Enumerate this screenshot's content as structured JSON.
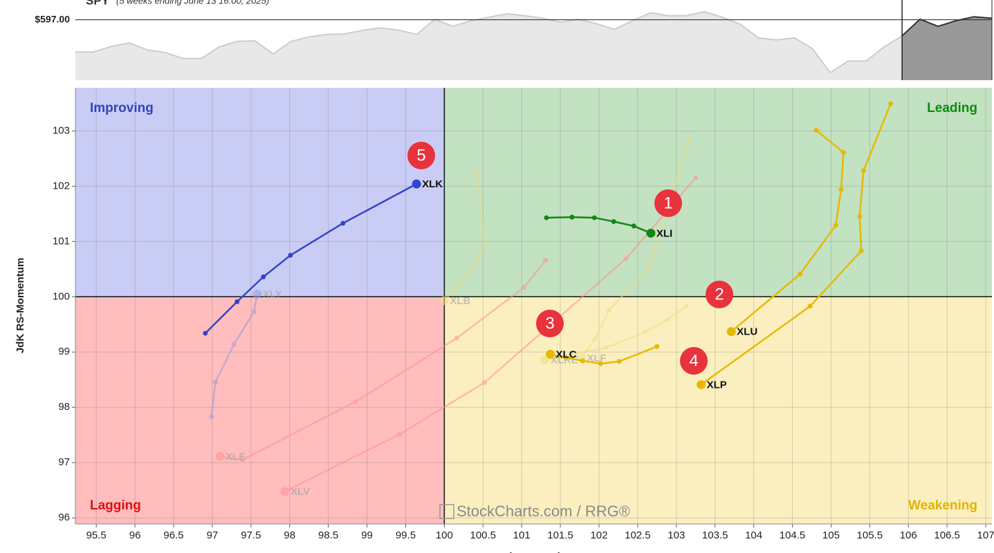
{
  "chart_data": {
    "type": "rrg",
    "benchmark": {
      "title": "SPY",
      "subtitle": "(5 weeks ending June 13 16:00, 2025)",
      "reference": {
        "value": 597,
        "label": "$597.00"
      },
      "ylim": [
        585,
        599
      ],
      "highlight_from": 46,
      "values": [
        590.6,
        590.6,
        591.7,
        592.4,
        591.0,
        590.5,
        589.3,
        589.3,
        591.6,
        592.7,
        592.8,
        590.2,
        592.7,
        593.6,
        594.1,
        594.2,
        594.9,
        595.4,
        594.9,
        594.1,
        597.1,
        595.7,
        596.8,
        597.5,
        598.2,
        597.8,
        597.3,
        596.5,
        597.1,
        596.2,
        595.1,
        596.8,
        598.4,
        597.8,
        597.8,
        598.6,
        597.5,
        596.1,
        593.4,
        593.0,
        593.4,
        591.3,
        586.5,
        588.8,
        588.8,
        591.6,
        593.8,
        597.1,
        595.7,
        596.8,
        597.6,
        597.3
      ]
    },
    "x_label": "JdK RS-Ratio",
    "y_label": "JdK RS-Momentum",
    "xlim": [
      95.23,
      107.08
    ],
    "ylim": [
      95.89,
      103.78
    ],
    "xticks": [
      95.5,
      96,
      96.5,
      97,
      97.5,
      98,
      98.5,
      99,
      99.5,
      100,
      100.5,
      101,
      101.5,
      102,
      102.5,
      103,
      103.5,
      104,
      104.5,
      105,
      105.5,
      106,
      106.5,
      107
    ],
    "yticks": [
      96,
      97,
      98,
      99,
      100,
      101,
      102,
      103
    ],
    "center": [
      100,
      100
    ],
    "grid": true,
    "quadrants": [
      {
        "name": "Improving",
        "color": "#c9cdf5",
        "text_color": "#3344bb"
      },
      {
        "name": "Leading",
        "color": "#c2e2c2",
        "text_color": "#118811"
      },
      {
        "name": "Lagging",
        "color": "#ffbdbd",
        "text_color": "#dd1111"
      },
      {
        "name": "Weakening",
        "color": "#fbefc0",
        "text_color": "#e2b400"
      }
    ],
    "watermark": "StockCharts.com / RRG®",
    "annotations": [
      "1",
      "2",
      "3",
      "4",
      "5"
    ],
    "series": [
      {
        "name": "XLY",
        "color": "#9999dd",
        "opacity": 0.55,
        "x": [
          96.99,
          97.04,
          97.28,
          97.54,
          97.58
        ],
        "y": [
          97.83,
          98.45,
          99.14,
          99.73,
          100.05
        ]
      },
      {
        "name": "XLE",
        "color": "#ff9090",
        "opacity": 0.55,
        "x": [
          101.31,
          101.03,
          100.16,
          98.85,
          97.39,
          97.1
        ],
        "y": [
          100.66,
          100.17,
          99.25,
          98.1,
          97.05,
          97.11
        ]
      },
      {
        "name": "XLV",
        "color": "#ff9090",
        "opacity": 0.55,
        "x": [
          103.25,
          102.35,
          100.52,
          99.42,
          97.94
        ],
        "y": [
          102.15,
          100.69,
          98.45,
          97.51,
          96.48
        ]
      },
      {
        "name": "XLB",
        "color": "#f0dc80",
        "opacity": 0.55,
        "x": [
          100.42,
          100.52,
          100.34,
          100.16,
          100.0
        ],
        "y": [
          102.3,
          100.93,
          100.46,
          100.18,
          99.93
        ]
      },
      {
        "name": "XLF",
        "color": "#f0dc80",
        "opacity": 0.55,
        "x": [
          103.17,
          102.65,
          102.13,
          101.95,
          101.77
        ],
        "y": [
          102.89,
          100.53,
          99.76,
          99.24,
          98.89
        ]
      },
      {
        "name": "XLRE",
        "color": "#f0dc80",
        "opacity": 0.55,
        "x": [
          103.13,
          102.89,
          102.59,
          102.09,
          101.3
        ],
        "y": [
          99.83,
          99.59,
          99.36,
          99.08,
          98.86
        ]
      },
      {
        "name": "XLK",
        "color": "#3344cc",
        "opacity": 1,
        "x": [
          96.91,
          97.32,
          97.66,
          98.01,
          98.69,
          99.64
        ],
        "y": [
          99.34,
          99.91,
          100.36,
          100.75,
          101.33,
          102.04
        ]
      },
      {
        "name": "XLI",
        "color": "#118811",
        "opacity": 1,
        "x": [
          101.32,
          101.65,
          101.94,
          102.19,
          102.45,
          102.67
        ],
        "y": [
          101.43,
          101.44,
          101.43,
          101.36,
          101.28,
          101.15
        ]
      },
      {
        "name": "XLU",
        "color": "#e8b800",
        "opacity": 1,
        "x": [
          104.81,
          105.16,
          105.13,
          105.06,
          104.6,
          103.71
        ],
        "y": [
          103.01,
          102.61,
          101.94,
          101.29,
          100.41,
          99.37
        ]
      },
      {
        "name": "XLP",
        "color": "#e8b800",
        "opacity": 1,
        "x": [
          105.77,
          105.42,
          105.37,
          105.39,
          104.73,
          103.32
        ],
        "y": [
          103.49,
          102.28,
          101.45,
          100.83,
          99.83,
          98.41
        ]
      },
      {
        "name": "XLC",
        "color": "#e8b800",
        "opacity": 1,
        "x": [
          102.75,
          102.26,
          102.02,
          101.79,
          101.57,
          101.37
        ],
        "y": [
          99.1,
          98.83,
          98.79,
          98.84,
          98.9,
          98.96
        ]
      }
    ]
  }
}
